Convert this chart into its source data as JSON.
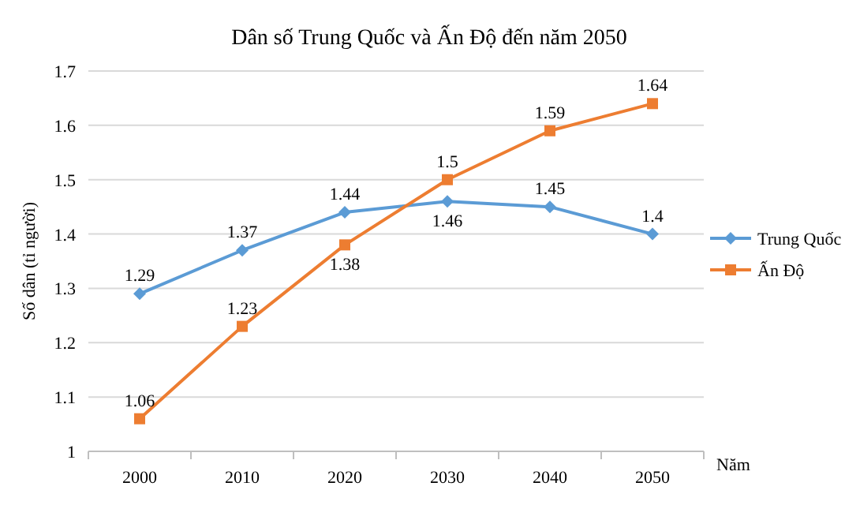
{
  "chart_data": {
    "type": "line",
    "title": "Dân số Trung Quốc và Ấn Độ đến năm 2050",
    "xlabel": "Năm",
    "ylabel": "Số dân (tỉ người)",
    "categories": [
      "2000",
      "2010",
      "2020",
      "2030",
      "2040",
      "2050"
    ],
    "series": [
      {
        "name": "Trung Quốc",
        "color": "#5b9bd5",
        "marker": "diamond",
        "values": [
          1.29,
          1.37,
          1.44,
          1.46,
          1.45,
          1.4
        ]
      },
      {
        "name": "Ấn Độ",
        "color": "#ed7d31",
        "marker": "square",
        "values": [
          1.06,
          1.23,
          1.38,
          1.5,
          1.59,
          1.64
        ]
      }
    ],
    "ylim": [
      1,
      1.7
    ],
    "yticks": [
      1,
      1.1,
      1.2,
      1.3,
      1.4,
      1.5,
      1.6,
      1.7
    ],
    "grid": "y",
    "legend": "right",
    "data_labels": true
  }
}
